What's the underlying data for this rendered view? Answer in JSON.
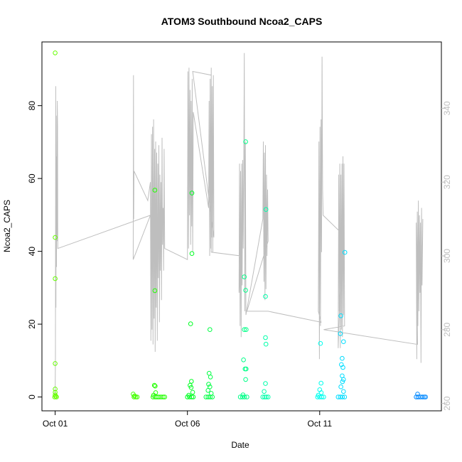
{
  "chart_data": {
    "type": "scatter",
    "title": "ATOM3 Southbound Ncoa2_CAPS",
    "xlabel": "Date",
    "ylabel": "Ncoa2_CAPS",
    "x_ticks": [
      "Oct 01",
      "Oct 06",
      "Oct 11"
    ],
    "x_tick_days": [
      1,
      6,
      11
    ],
    "xlim": [
      0.5,
      15.6
    ],
    "y_left_ticks": [
      "0",
      "20",
      "40",
      "60",
      "80"
    ],
    "y_left_tick_values": [
      0,
      20,
      40,
      60,
      80
    ],
    "ylim_left": [
      -3.8,
      97.5
    ],
    "y_right_ticks": [
      "260",
      "280",
      "300",
      "320",
      "340"
    ],
    "y_right_tick_values": [
      260,
      280,
      300,
      320,
      340
    ],
    "ylim_right": [
      258,
      358
    ],
    "right_axis_color": "#bebebe",
    "line_color": "#bebebe",
    "grid": false,
    "series": [
      {
        "type": "points",
        "values": [
          {
            "x": 1.0,
            "y": 94.5,
            "c": "#66ff00"
          },
          {
            "x": 1.0,
            "y": 43.8,
            "c": "#66ff00"
          },
          {
            "x": 1.0,
            "y": 32.5,
            "c": "#66ff00"
          },
          {
            "x": 1.0,
            "y": 9.2,
            "c": "#66ff00"
          },
          {
            "x": 1.0,
            "y": 2.2,
            "c": "#66ff00"
          },
          {
            "x": 1.0,
            "y": 1.3,
            "c": "#66ff00"
          },
          {
            "x": 1.0,
            "y": 0.6,
            "c": "#66ff00"
          },
          {
            "x": 1.02,
            "y": 0.2,
            "c": "#66ff00"
          },
          {
            "x": 0.98,
            "y": 0.0,
            "c": "#66ff00"
          },
          {
            "x": 1.05,
            "y": 0.0,
            "c": "#66ff00"
          },
          {
            "x": 3.95,
            "y": 0.8,
            "c": "#44ff00"
          },
          {
            "x": 4.0,
            "y": 0.3,
            "c": "#44ff00"
          },
          {
            "x": 3.98,
            "y": 0.0,
            "c": "#44ff00"
          },
          {
            "x": 4.05,
            "y": 0.0,
            "c": "#44ff00"
          },
          {
            "x": 4.1,
            "y": 0.0,
            "c": "#44ff00"
          },
          {
            "x": 4.77,
            "y": 56.8,
            "c": "#22ff00"
          },
          {
            "x": 4.77,
            "y": 29.2,
            "c": "#22ff00"
          },
          {
            "x": 4.75,
            "y": 3.2,
            "c": "#22ff00"
          },
          {
            "x": 4.78,
            "y": 3.0,
            "c": "#22ff00"
          },
          {
            "x": 4.8,
            "y": 1.2,
            "c": "#22ff00"
          },
          {
            "x": 4.72,
            "y": 0.5,
            "c": "#22ff00"
          },
          {
            "x": 4.7,
            "y": 0.0,
            "c": "#22ff00"
          },
          {
            "x": 4.78,
            "y": 0.0,
            "c": "#22ff00"
          },
          {
            "x": 4.85,
            "y": 0.0,
            "c": "#22ff00"
          },
          {
            "x": 4.92,
            "y": 0.0,
            "c": "#22ff00"
          },
          {
            "x": 5.0,
            "y": 0.0,
            "c": "#22ff00"
          },
          {
            "x": 5.08,
            "y": 0.0,
            "c": "#22ff00"
          },
          {
            "x": 5.14,
            "y": 0.0,
            "c": "#22ff00"
          },
          {
            "x": 6.17,
            "y": 56.0,
            "c": "#00ff22"
          },
          {
            "x": 6.17,
            "y": 39.4,
            "c": "#00ff22"
          },
          {
            "x": 6.12,
            "y": 20.1,
            "c": "#00ff22"
          },
          {
            "x": 6.15,
            "y": 4.3,
            "c": "#00ff22"
          },
          {
            "x": 6.1,
            "y": 3.2,
            "c": "#00ff22"
          },
          {
            "x": 6.14,
            "y": 2.6,
            "c": "#00ff22"
          },
          {
            "x": 6.2,
            "y": 1.3,
            "c": "#00ff22"
          },
          {
            "x": 6.05,
            "y": 0.5,
            "c": "#00ff22"
          },
          {
            "x": 6.0,
            "y": 0.0,
            "c": "#00ff22"
          },
          {
            "x": 6.08,
            "y": 0.0,
            "c": "#00ff22"
          },
          {
            "x": 6.16,
            "y": 0.0,
            "c": "#00ff22"
          },
          {
            "x": 6.22,
            "y": 0.0,
            "c": "#00ff22"
          },
          {
            "x": 6.85,
            "y": 18.5,
            "c": "#00ff44"
          },
          {
            "x": 6.82,
            "y": 6.5,
            "c": "#00ff44"
          },
          {
            "x": 6.87,
            "y": 5.5,
            "c": "#00ff44"
          },
          {
            "x": 6.8,
            "y": 3.5,
            "c": "#00ff44"
          },
          {
            "x": 6.85,
            "y": 2.8,
            "c": "#00ff44"
          },
          {
            "x": 6.78,
            "y": 1.8,
            "c": "#00ff44"
          },
          {
            "x": 6.9,
            "y": 1.0,
            "c": "#00ff44"
          },
          {
            "x": 6.7,
            "y": 0.0,
            "c": "#00ff44"
          },
          {
            "x": 6.78,
            "y": 0.0,
            "c": "#00ff44"
          },
          {
            "x": 6.86,
            "y": 0.0,
            "c": "#00ff44"
          },
          {
            "x": 6.94,
            "y": 0.0,
            "c": "#00ff44"
          },
          {
            "x": 8.2,
            "y": 70.1,
            "c": "#00ff88"
          },
          {
            "x": 8.15,
            "y": 33.0,
            "c": "#00ff88"
          },
          {
            "x": 8.2,
            "y": 29.3,
            "c": "#00ff88"
          },
          {
            "x": 8.15,
            "y": 18.5,
            "c": "#00ff88"
          },
          {
            "x": 8.22,
            "y": 18.5,
            "c": "#00ff88"
          },
          {
            "x": 8.12,
            "y": 10.2,
            "c": "#00ff88"
          },
          {
            "x": 8.18,
            "y": 7.7,
            "c": "#00ff88"
          },
          {
            "x": 8.22,
            "y": 7.7,
            "c": "#00ff88"
          },
          {
            "x": 8.2,
            "y": 4.8,
            "c": "#00ff88"
          },
          {
            "x": 8.1,
            "y": 0.6,
            "c": "#00ff88"
          },
          {
            "x": 8.0,
            "y": 0.0,
            "c": "#00ff88"
          },
          {
            "x": 8.08,
            "y": 0.0,
            "c": "#00ff88"
          },
          {
            "x": 8.16,
            "y": 0.0,
            "c": "#00ff88"
          },
          {
            "x": 8.25,
            "y": 0.0,
            "c": "#00ff88"
          },
          {
            "x": 8.97,
            "y": 51.5,
            "c": "#00ffaa"
          },
          {
            "x": 8.95,
            "y": 27.6,
            "c": "#00ffaa"
          },
          {
            "x": 8.95,
            "y": 16.3,
            "c": "#00ffaa"
          },
          {
            "x": 8.97,
            "y": 14.5,
            "c": "#00ffaa"
          },
          {
            "x": 8.95,
            "y": 3.7,
            "c": "#00ffaa"
          },
          {
            "x": 8.9,
            "y": 1.5,
            "c": "#00ffaa"
          },
          {
            "x": 8.85,
            "y": 0.0,
            "c": "#00ffaa"
          },
          {
            "x": 8.92,
            "y": 0.0,
            "c": "#00ffaa"
          },
          {
            "x": 8.98,
            "y": 0.0,
            "c": "#00ffaa"
          },
          {
            "x": 9.05,
            "y": 0.0,
            "c": "#00ffaa"
          },
          {
            "x": 11.03,
            "y": 14.7,
            "c": "#00ffee"
          },
          {
            "x": 11.05,
            "y": 3.8,
            "c": "#00ffee"
          },
          {
            "x": 11.0,
            "y": 2.0,
            "c": "#00ffee"
          },
          {
            "x": 11.06,
            "y": 1.2,
            "c": "#00ffee"
          },
          {
            "x": 10.95,
            "y": 0.5,
            "c": "#00ffee"
          },
          {
            "x": 10.92,
            "y": 0.0,
            "c": "#00ffee"
          },
          {
            "x": 11.0,
            "y": 0.0,
            "c": "#00ffee"
          },
          {
            "x": 11.08,
            "y": 0.0,
            "c": "#00ffee"
          },
          {
            "x": 11.15,
            "y": 0.0,
            "c": "#00ffee"
          },
          {
            "x": 11.95,
            "y": 39.7,
            "c": "#00ddff"
          },
          {
            "x": 11.8,
            "y": 22.3,
            "c": "#00ddff"
          },
          {
            "x": 11.78,
            "y": 17.4,
            "c": "#00ddff"
          },
          {
            "x": 11.9,
            "y": 15.2,
            "c": "#00ddff"
          },
          {
            "x": 11.85,
            "y": 10.6,
            "c": "#00ddff"
          },
          {
            "x": 11.88,
            "y": 8.1,
            "c": "#00ddff"
          },
          {
            "x": 11.82,
            "y": 8.9,
            "c": "#00ddff"
          },
          {
            "x": 11.85,
            "y": 5.8,
            "c": "#00ddff"
          },
          {
            "x": 11.9,
            "y": 4.8,
            "c": "#00ddff"
          },
          {
            "x": 11.86,
            "y": 4.2,
            "c": "#00ddff"
          },
          {
            "x": 11.8,
            "y": 2.8,
            "c": "#00ddff"
          },
          {
            "x": 11.9,
            "y": 1.5,
            "c": "#00ddff"
          },
          {
            "x": 11.7,
            "y": 0.0,
            "c": "#00ddff"
          },
          {
            "x": 11.78,
            "y": 0.0,
            "c": "#00ddff"
          },
          {
            "x": 11.86,
            "y": 0.0,
            "c": "#00ddff"
          },
          {
            "x": 11.94,
            "y": 0.0,
            "c": "#00ddff"
          },
          {
            "x": 14.7,
            "y": 0.8,
            "c": "#0088ff"
          },
          {
            "x": 14.65,
            "y": 0.0,
            "c": "#0088ff"
          },
          {
            "x": 14.72,
            "y": 0.0,
            "c": "#0088ff"
          },
          {
            "x": 14.8,
            "y": 0.0,
            "c": "#0088ff"
          },
          {
            "x": 14.88,
            "y": 0.0,
            "c": "#0088ff"
          },
          {
            "x": 14.95,
            "y": 0.0,
            "c": "#0088ff"
          },
          {
            "x": 15.0,
            "y": 0.0,
            "c": "#0088ff"
          }
        ]
      },
      {
        "type": "line",
        "axis": "right",
        "points": [
          [
            1.0,
            262
          ],
          [
            1.01,
            273
          ],
          [
            1.02,
            346
          ],
          [
            1.03,
            286
          ],
          [
            1.04,
            338
          ],
          [
            1.05,
            297
          ],
          [
            1.06,
            327
          ],
          [
            1.07,
            304
          ],
          [
            1.08,
            342
          ],
          [
            1.09,
            335
          ],
          [
            1.1,
            302
          ],
          [
            4.6,
            311
          ],
          [
            3.95,
            299
          ],
          [
            3.96,
            349
          ],
          [
            3.97,
            310
          ],
          [
            3.98,
            323
          ],
          [
            4.5,
            315
          ],
          [
            4.6,
            320
          ],
          [
            4.62,
            277
          ],
          [
            4.64,
            333
          ],
          [
            4.66,
            280
          ],
          [
            4.68,
            335
          ],
          [
            4.7,
            276
          ],
          [
            4.72,
            337
          ],
          [
            4.74,
            283
          ],
          [
            4.76,
            329
          ],
          [
            4.78,
            274
          ],
          [
            4.8,
            331
          ],
          [
            4.82,
            286
          ],
          [
            4.84,
            328
          ],
          [
            4.86,
            277
          ],
          [
            4.88,
            325
          ],
          [
            4.9,
            294
          ],
          [
            4.92,
            330
          ],
          [
            4.94,
            282
          ],
          [
            4.96,
            322
          ],
          [
            4.98,
            296
          ],
          [
            5.0,
            320
          ],
          [
            5.02,
            288
          ],
          [
            5.04,
            332
          ],
          [
            5.06,
            303
          ],
          [
            5.08,
            313
          ],
          [
            5.1,
            296
          ],
          [
            5.12,
            329
          ],
          [
            5.14,
            302
          ],
          [
            6.0,
            299
          ],
          [
            6.02,
            350
          ],
          [
            6.04,
            302
          ],
          [
            6.06,
            351
          ],
          [
            6.08,
            311
          ],
          [
            6.1,
            345
          ],
          [
            6.12,
            303
          ],
          [
            6.14,
            342
          ],
          [
            6.16,
            308
          ],
          [
            6.18,
            348
          ],
          [
            6.2,
            301
          ],
          [
            6.22,
            339
          ],
          [
            6.8,
            313
          ],
          [
            6.82,
            342
          ],
          [
            6.84,
            300
          ],
          [
            6.86,
            348
          ],
          [
            6.88,
            302
          ],
          [
            6.9,
            351
          ],
          [
            6.92,
            305
          ],
          [
            6.94,
            346
          ],
          [
            6.96,
            301
          ],
          [
            6.98,
            349
          ],
          [
            7.0,
            305
          ],
          [
            6.2,
            350
          ],
          [
            6.9,
            349
          ],
          [
            6.9,
            301
          ],
          [
            8.0,
            300
          ],
          [
            7.95,
            290
          ],
          [
            7.97,
            325
          ],
          [
            7.99,
            281
          ],
          [
            8.01,
            323
          ],
          [
            8.03,
            278
          ],
          [
            8.05,
            325
          ],
          [
            8.07,
            292
          ],
          [
            8.09,
            326
          ],
          [
            8.11,
            302
          ],
          [
            8.13,
            324
          ],
          [
            8.15,
            355
          ],
          [
            8.17,
            285
          ],
          [
            8.19,
            331
          ],
          [
            8.21,
            284
          ],
          [
            8.85,
            310
          ],
          [
            8.87,
            331
          ],
          [
            8.89,
            293
          ],
          [
            8.91,
            328
          ],
          [
            8.93,
            288
          ],
          [
            8.95,
            330
          ],
          [
            8.97,
            291
          ],
          [
            8.99,
            322
          ],
          [
            9.01,
            300
          ],
          [
            9.03,
            318
          ],
          [
            9.05,
            304
          ],
          [
            8.25,
            285
          ],
          [
            9.05,
            285
          ],
          [
            11.05,
            282
          ],
          [
            10.95,
            285
          ],
          [
            10.97,
            331
          ],
          [
            10.99,
            272
          ],
          [
            11.01,
            335
          ],
          [
            11.03,
            281
          ],
          [
            11.05,
            337
          ],
          [
            11.07,
            301
          ],
          [
            11.09,
            354
          ],
          [
            11.11,
            318
          ],
          [
            11.13,
            311
          ],
          [
            11.85,
            306
          ],
          [
            11.7,
            275
          ],
          [
            11.72,
            322
          ],
          [
            11.74,
            285
          ],
          [
            11.76,
            325
          ],
          [
            11.78,
            275
          ],
          [
            11.8,
            322
          ],
          [
            11.82,
            280
          ],
          [
            11.84,
            325
          ],
          [
            11.86,
            278
          ],
          [
            11.88,
            327
          ],
          [
            11.9,
            284
          ],
          [
            11.92,
            325
          ],
          [
            11.94,
            281
          ],
          [
            11.15,
            280
          ],
          [
            14.7,
            276
          ],
          [
            14.65,
            309
          ],
          [
            14.67,
            272
          ],
          [
            14.69,
            312
          ],
          [
            14.71,
            281
          ],
          [
            14.73,
            315
          ],
          [
            14.75,
            285
          ],
          [
            14.77,
            311
          ],
          [
            14.79,
            290
          ],
          [
            14.81,
            309
          ],
          [
            14.83,
            271
          ],
          [
            14.85,
            313
          ],
          [
            14.87,
            292
          ],
          [
            14.9,
            310
          ]
        ]
      }
    ]
  }
}
